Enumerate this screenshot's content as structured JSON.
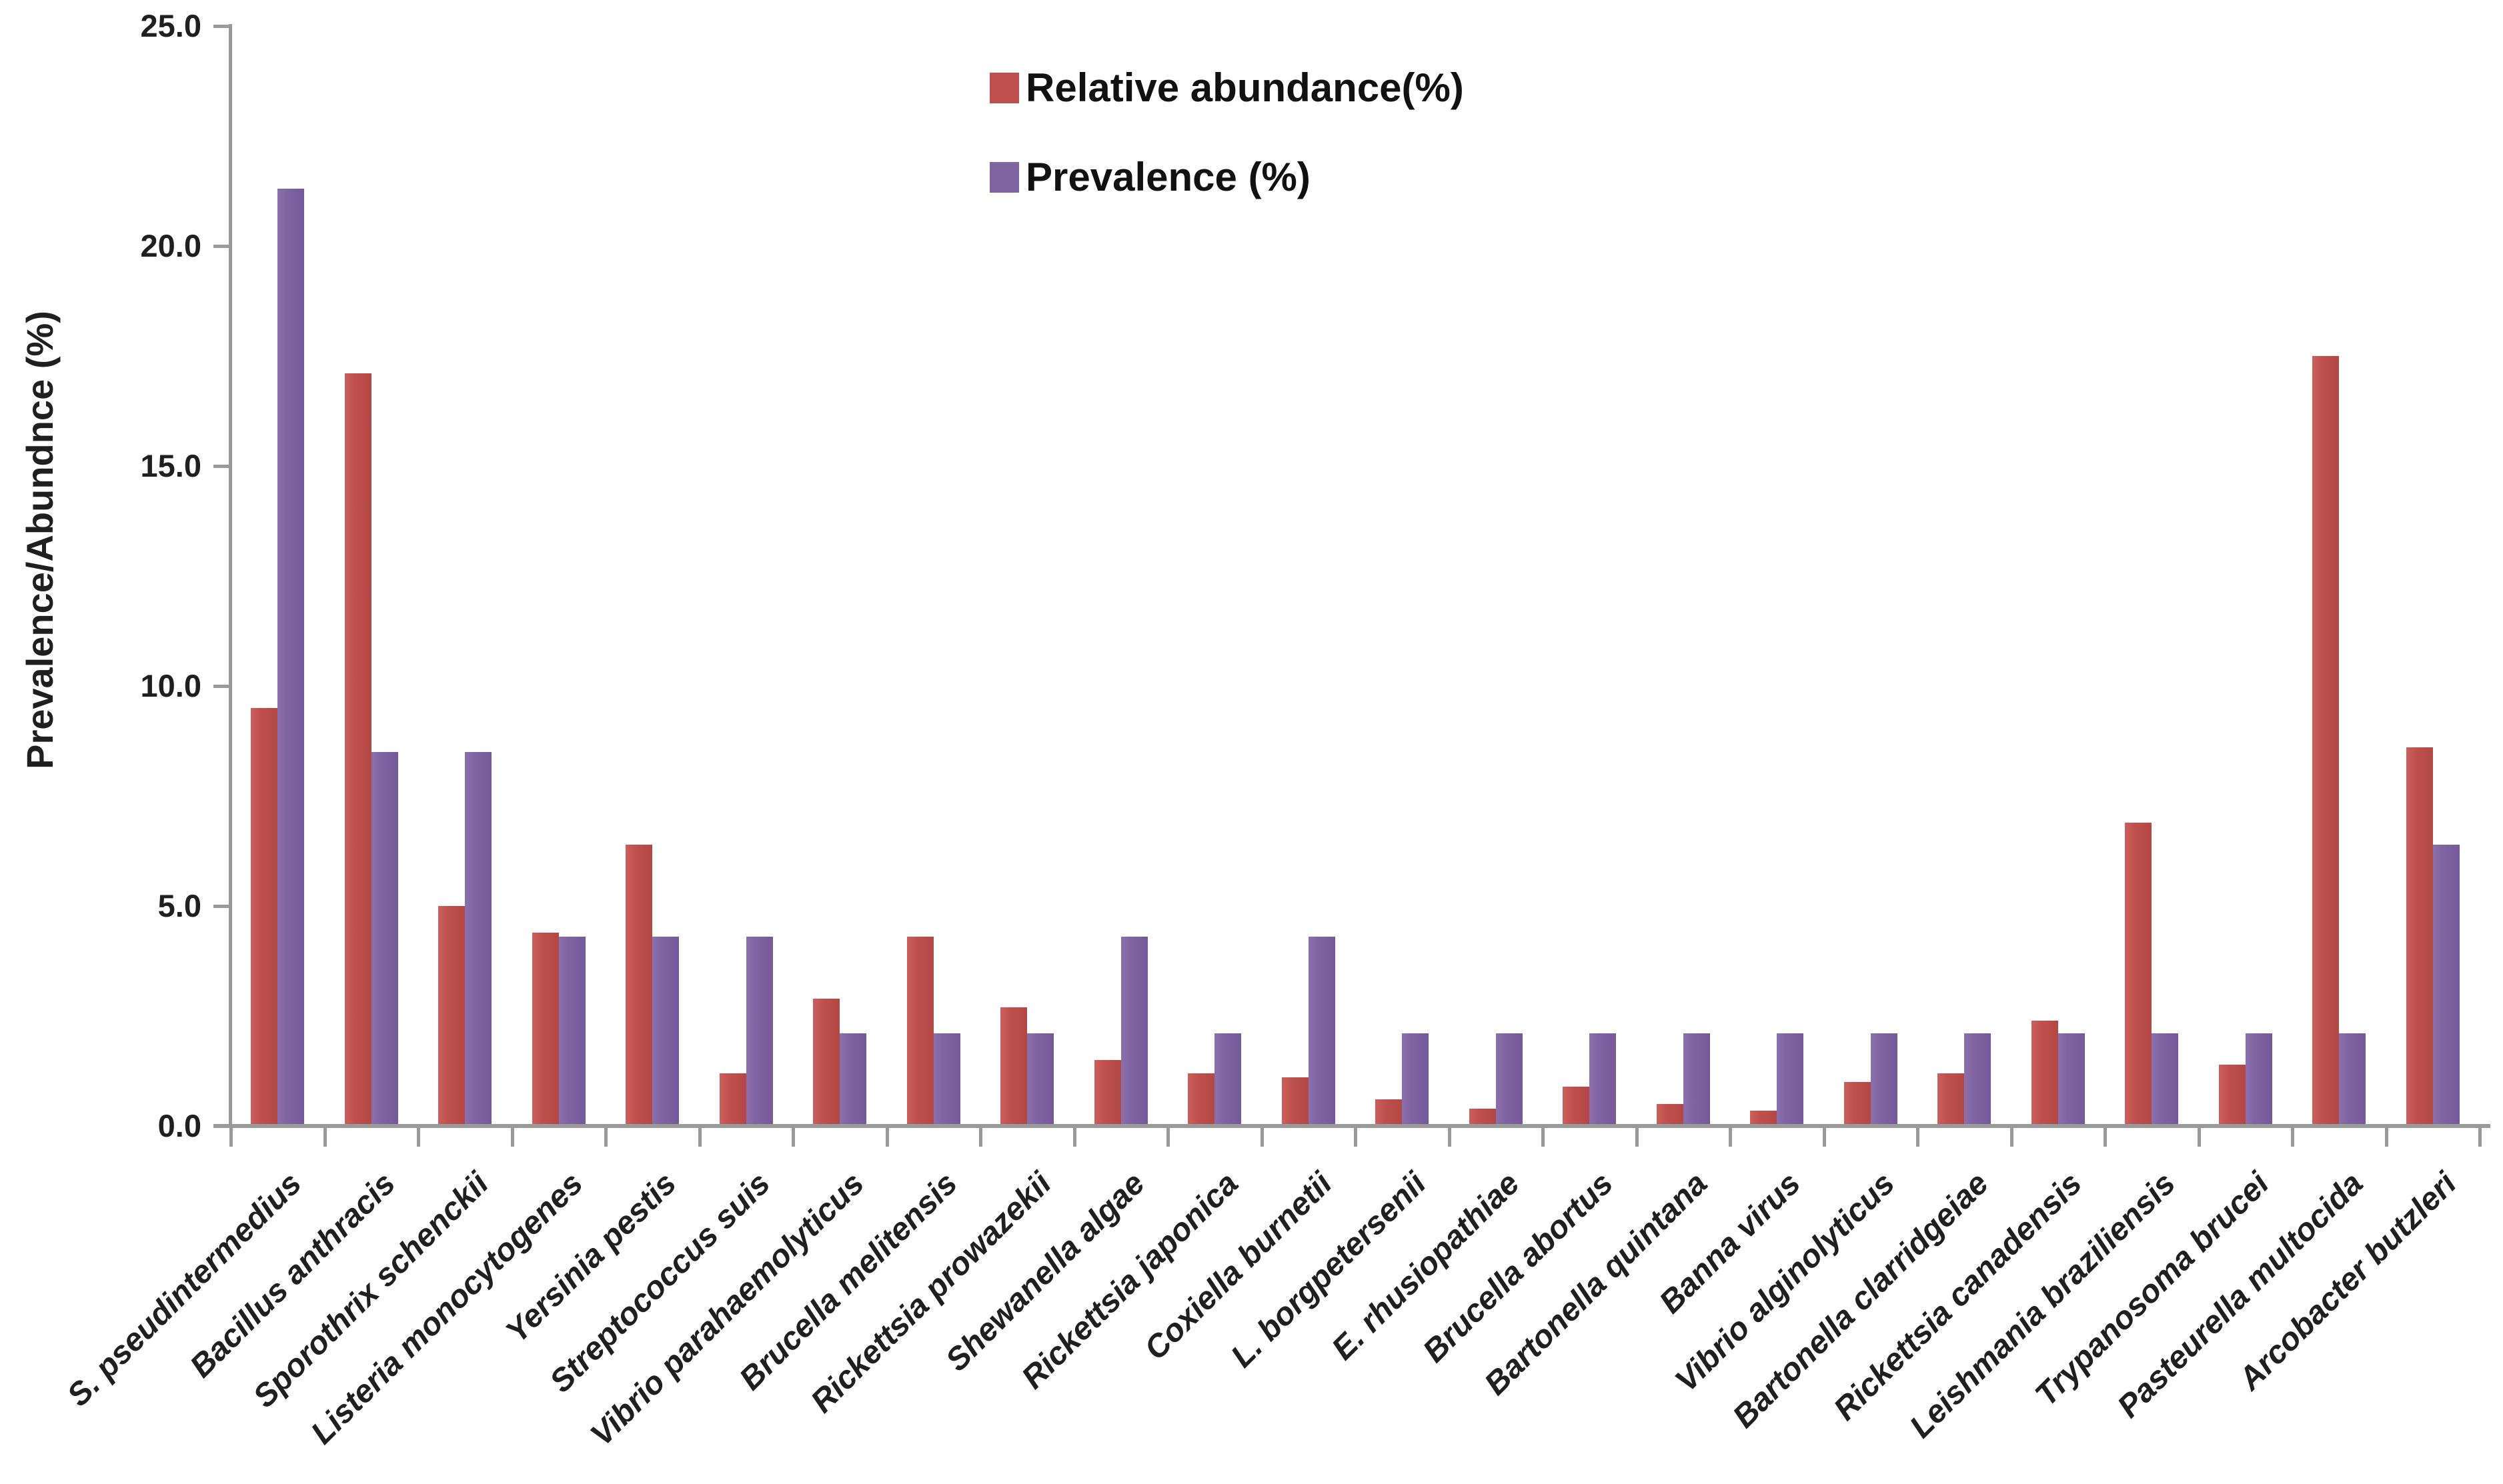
{
  "chart_data": {
    "type": "bar",
    "title": "",
    "xlabel": "",
    "ylabel": "Prevalence/Abundnce (%)",
    "ylim": [
      0,
      25
    ],
    "ytick_step": 5,
    "yticks": [
      "0.0",
      "5.0",
      "10.0",
      "15.0",
      "20.0",
      "25.0"
    ],
    "grid": "off",
    "legend_position": "top-center",
    "categories": [
      "S. pseudintermedius",
      "Bacillus anthracis",
      "Sporothrix schenckii",
      "Listeria monocytogenes",
      "Yersinia pestis",
      "Streptococcus suis",
      "Vibrio parahaemolyticus",
      "Brucella melitensis",
      "Rickettsia prowazekii",
      "Shewanella algae",
      "Rickettsia japonica",
      "Coxiella burnetii",
      "L. borgpetersenii",
      "E. rhusiopathiae",
      "Brucella abortus",
      "Bartonella quintana",
      "Banna virus",
      "Vibrio alginolyticus",
      "Bartonella clarridgeiae",
      "Rickettsia canadensis",
      "Leishmania braziliensis",
      "Trypanosoma brucei",
      "Pasteurella multocida",
      "Arcobacter butzleri"
    ],
    "series": [
      {
        "name": "Relative abundance(%)",
        "color": "#C0504D",
        "values": [
          9.5,
          17.1,
          5.0,
          4.4,
          6.4,
          1.2,
          2.9,
          4.3,
          2.7,
          1.5,
          1.2,
          1.1,
          0.6,
          0.4,
          0.9,
          0.5,
          0.35,
          1.0,
          1.2,
          2.4,
          6.9,
          1.4,
          17.5,
          8.6
        ]
      },
      {
        "name": "Prevalence (%)",
        "color": "#8064A2",
        "values": [
          21.3,
          8.5,
          8.5,
          4.3,
          4.3,
          4.3,
          2.1,
          2.1,
          2.1,
          4.3,
          2.1,
          4.3,
          2.1,
          2.1,
          2.1,
          2.1,
          2.1,
          2.1,
          2.1,
          2.1,
          2.1,
          2.1,
          2.1,
          6.4
        ]
      }
    ]
  },
  "colors": {
    "bar_red": "#C0504D",
    "bar_purple": "#8064A2",
    "axis": "#9A9A9A",
    "text": "#1F1F1F",
    "background": "#FFFFFF"
  }
}
